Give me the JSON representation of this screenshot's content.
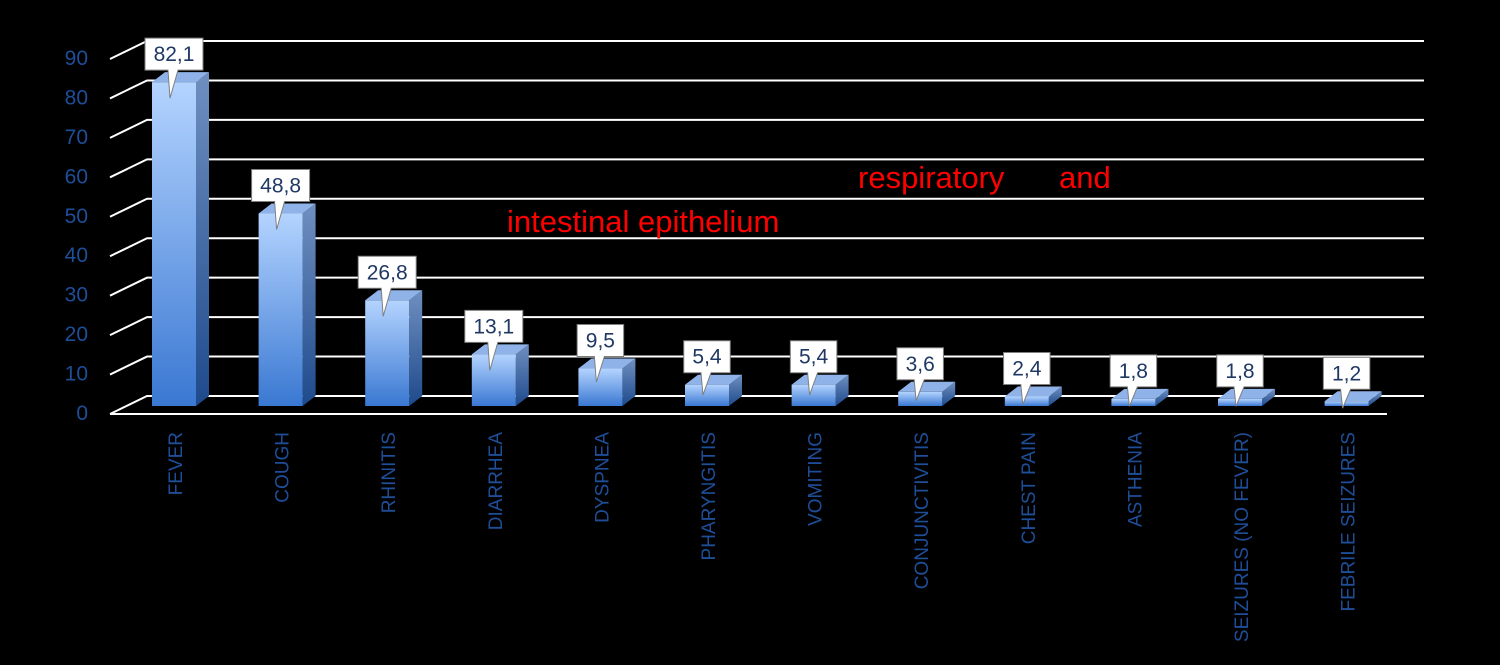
{
  "chart_data": {
    "type": "bar",
    "title": "",
    "xlabel": "",
    "ylabel": "",
    "ylim": [
      0,
      90
    ],
    "yticks": [
      0,
      10,
      20,
      30,
      40,
      50,
      60,
      70,
      80,
      90
    ],
    "grid": true,
    "legend": "none",
    "categories": [
      "FEVER",
      "COUGH",
      "RHINITIS",
      "DIARRHEA",
      "DYSPNEA",
      "PHARYNGITIS",
      "VOMITING",
      "CONJUNCTIVITIS",
      "CHEST PAIN",
      "ASTHENIA",
      "SEIZURES (NO FEVER)",
      "FEBRILE SEIZURES"
    ],
    "values": [
      82.1,
      48.8,
      26.8,
      13.1,
      9.5,
      5.4,
      5.4,
      3.6,
      2.4,
      1.8,
      1.8,
      1.2
    ],
    "data_labels": [
      "82,1",
      "48,8",
      "26,8",
      "13,1",
      "9,5",
      "5,4",
      "5,4",
      "3,6",
      "2,4",
      "1,8",
      "1,8",
      "1,2"
    ]
  },
  "overlay": {
    "line1_a": "respiratory",
    "line1_b": "and",
    "line2": "intestinal epithelium"
  },
  "colors": {
    "background": "#000000",
    "grid": "#ffffff",
    "axis_text": "#1f4e99",
    "bar_light": "#a9ccff",
    "bar_dark": "#3a76d0",
    "label_text": "#1f3864",
    "overlay_text": "#ff0000"
  }
}
